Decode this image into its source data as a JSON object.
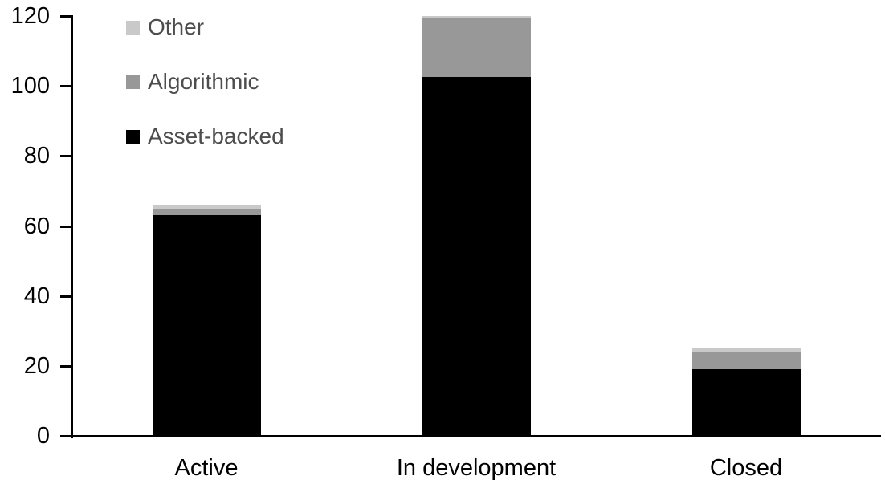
{
  "chart_data": {
    "type": "bar",
    "stacked": true,
    "title": "",
    "xlabel": "",
    "ylabel": "",
    "categories": [
      "Active",
      "In development",
      "Closed"
    ],
    "series": [
      {
        "name": "Asset-backed",
        "color": "#000000",
        "values": [
          63,
          102.5,
          19
        ]
      },
      {
        "name": "Algorithmic",
        "color": "#989898",
        "values": [
          2,
          17,
          5
        ]
      },
      {
        "name": "Other",
        "color": "#c9c9c9",
        "values": [
          1,
          0.5,
          1
        ]
      }
    ],
    "totals": [
      66,
      120,
      25
    ],
    "yticks": [
      0,
      20,
      40,
      60,
      80,
      100,
      120
    ],
    "ylim": [
      0,
      120
    ],
    "grid": false,
    "legend": {
      "position": "top-left",
      "order": [
        "Other",
        "Algorithmic",
        "Asset-backed"
      ]
    }
  },
  "colors": {
    "background": "#ffffff",
    "axis": "#000000",
    "tick_label_text": "#000000",
    "category_label_text": "#000000",
    "legend_text": "#4d4d4d"
  }
}
